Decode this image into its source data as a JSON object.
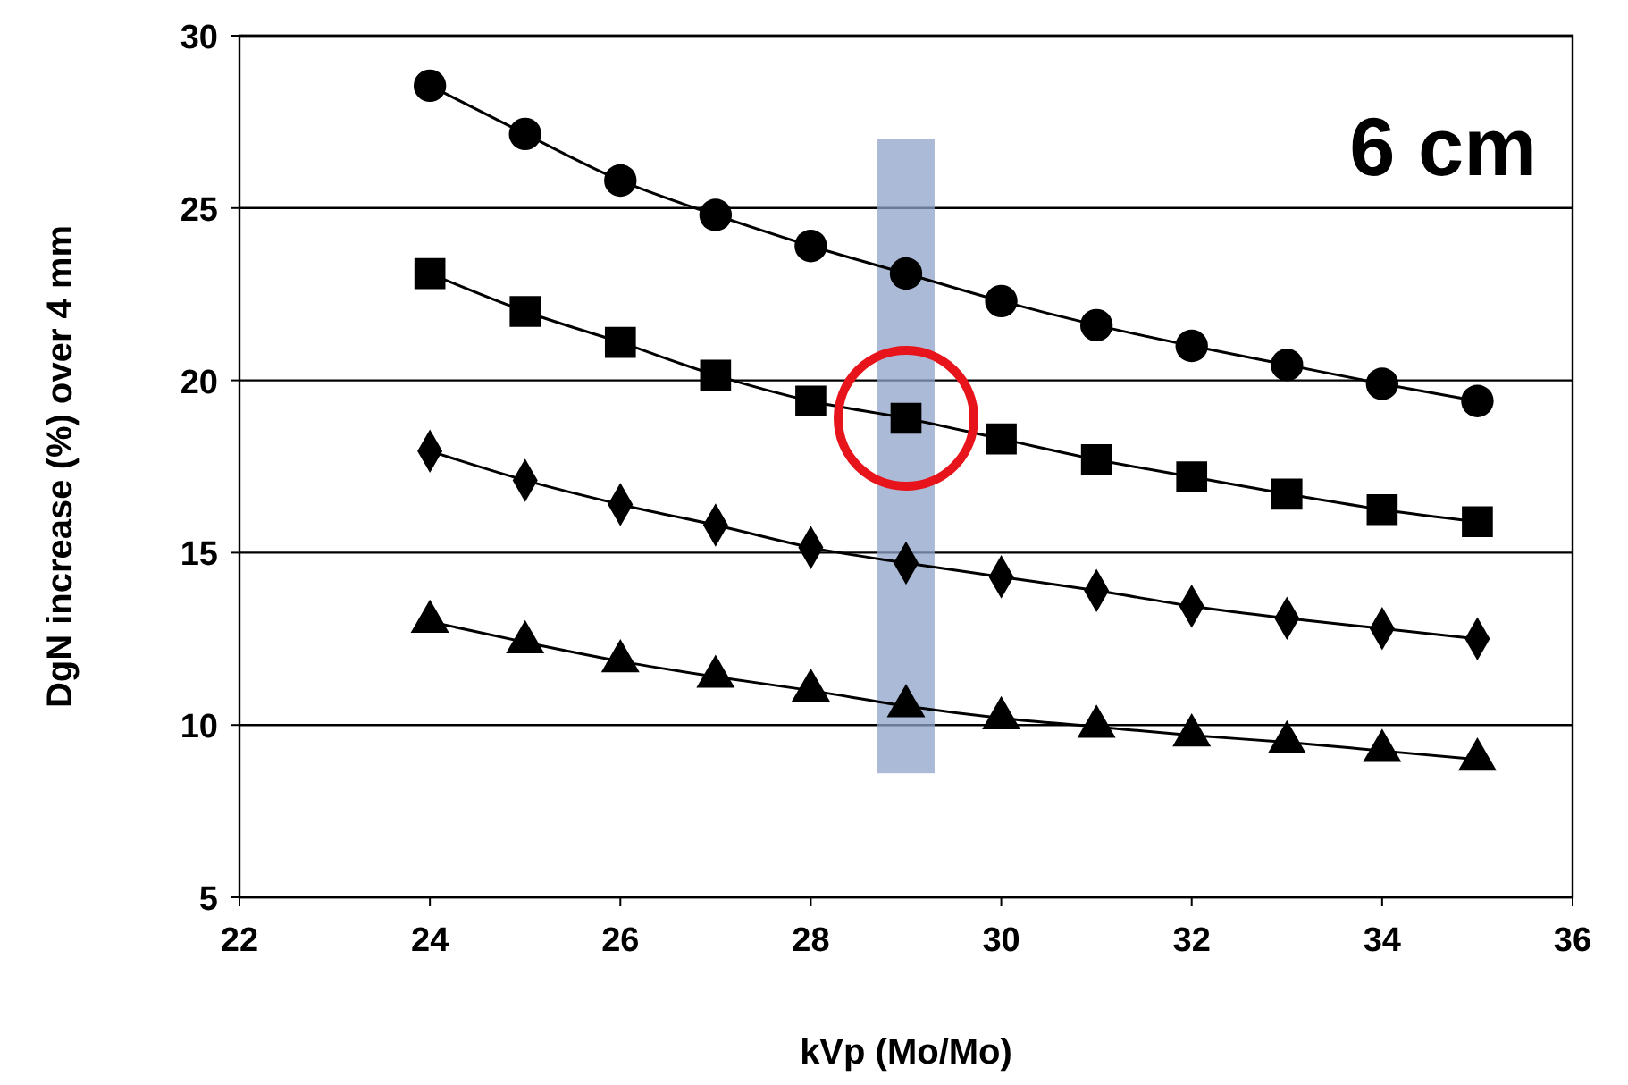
{
  "chart_data": {
    "type": "line",
    "xlabel": "kVp (Mo/Mo)",
    "ylabel": "DgN increase (%) over 4 mm",
    "x": [
      24,
      25,
      26,
      27,
      28,
      29,
      30,
      31,
      32,
      33,
      34,
      35
    ],
    "xlim": [
      22,
      36
    ],
    "xticks": [
      22,
      24,
      26,
      28,
      30,
      32,
      34,
      36
    ],
    "ylim": [
      5,
      30
    ],
    "yticks": [
      5,
      10,
      15,
      20,
      25,
      30
    ],
    "grid": "y",
    "series": [
      {
        "color": "#000000",
        "marker": "circle",
        "values": [
          28.55,
          27.15,
          25.8,
          24.8,
          23.9,
          23.1,
          22.3,
          21.6,
          21.0,
          20.45,
          19.9,
          19.4
        ]
      },
      {
        "color": "#000000",
        "marker": "square",
        "values": [
          23.1,
          22.0,
          21.1,
          20.15,
          19.4,
          18.9,
          18.3,
          17.7,
          17.2,
          16.7,
          16.25,
          15.9
        ]
      },
      {
        "color": "#000000",
        "marker": "diamond",
        "values": [
          17.95,
          17.1,
          16.4,
          15.8,
          15.15,
          14.7,
          14.3,
          13.9,
          13.45,
          13.1,
          12.8,
          12.5
        ]
      },
      {
        "color": "#000000",
        "marker": "triangle",
        "values": [
          13.0,
          12.4,
          11.85,
          11.4,
          11.0,
          10.55,
          10.2,
          9.95,
          9.7,
          9.5,
          9.25,
          9.0
        ]
      }
    ],
    "bands": [
      {
        "axis": "x",
        "from": 28.7,
        "to": 29.3,
        "color": "#8fa3c8"
      }
    ],
    "annotations": [
      "6 cm"
    ]
  }
}
